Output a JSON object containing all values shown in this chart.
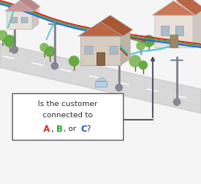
{
  "bg_color": "#f5f5f5",
  "road_color": "#d8d8d8",
  "road_edge_color": "#c0c0c0",
  "road_stripe_color": "#ffffff",
  "line_red": "#dd2222",
  "line_green": "#44aa44",
  "line_blue": "#2266dd",
  "line_cyan": "#44ccdd",
  "pole_color": "#7a7a8a",
  "pole_base_color": "#888899",
  "house1_roof": "#cc9999",
  "house1_wall": "#e8e0d8",
  "house1_shadow": "#d0c8c0",
  "house2_roof": "#cc7755",
  "house2_wall": "#e8e0d8",
  "house2_shadow": "#d0c8c0",
  "house3_roof": "#bb6644",
  "house3_wall": "#d8ccc0",
  "house3_shadow": "#c0b4a8",
  "tree_color1": "#88bb66",
  "tree_color2": "#66aa44",
  "tree_trunk": "#886644",
  "box_bg": "#ffffff",
  "box_border": "#666666",
  "arrow_color": "#444455",
  "text_main": "#333333",
  "text_A": "#dd2222",
  "text_B": "#22aa22",
  "text_C": "#2255cc",
  "car_color": "#b8cce4",
  "box_text_line1": "Is the customer",
  "box_text_line2": "connected to",
  "box_text_A": "A",
  "box_text_B": "B",
  "box_text_C": "C"
}
